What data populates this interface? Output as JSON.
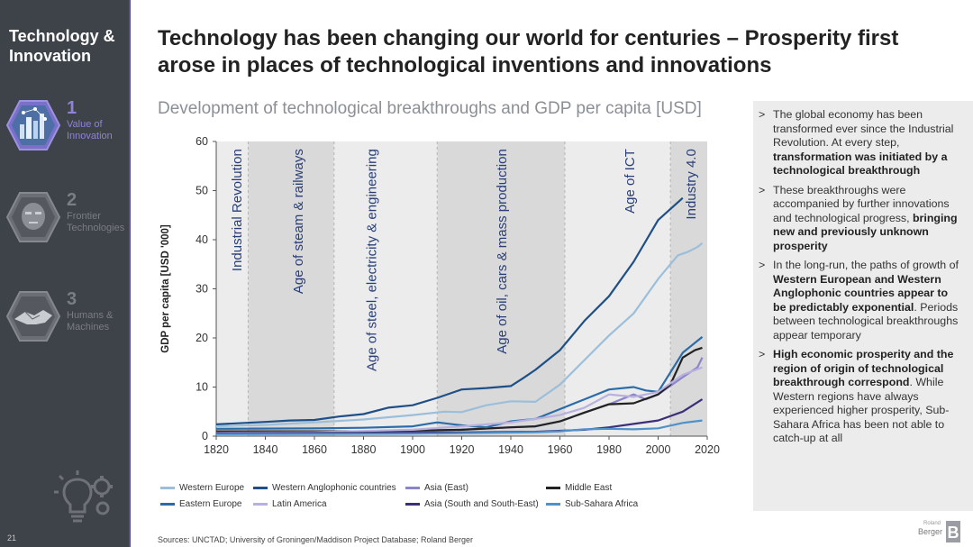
{
  "sidebar": {
    "title": "Technology & Innovation",
    "items": [
      {
        "num": "1",
        "label": "Value of Innovation",
        "icon": "city-network-icon"
      },
      {
        "num": "2",
        "label": "Frontier Technologies",
        "icon": "robot-face-icon"
      },
      {
        "num": "3",
        "label": "Humans & Machines",
        "icon": "handshake-icon"
      }
    ],
    "page_number": "21"
  },
  "header": {
    "title": "Technology has been changing our world for centuries – Prosperity first arose in places of technological inventions and innovations"
  },
  "chart_title": "Development of technological breakthroughs and GDP per capita [USD]",
  "chart_data": {
    "type": "line",
    "title": "Development of technological breakthroughs and GDP per capita [USD]",
    "xlabel": "",
    "ylabel": "GDP per capita [USD '000]",
    "xlim": [
      1820,
      2020
    ],
    "ylim": [
      0,
      60
    ],
    "x_ticks": [
      "1820",
      "1840",
      "1860",
      "1880",
      "1900",
      "1920",
      "1940",
      "1960",
      "1980",
      "2000",
      "2020"
    ],
    "y_ticks": [
      "0",
      "10",
      "20",
      "30",
      "40",
      "50",
      "60"
    ],
    "grid": false,
    "legend_position": "bottom",
    "eras": [
      {
        "label": "Industrial Revolution",
        "start": 1820,
        "end": 1833,
        "shade": "#ececec"
      },
      {
        "label": "Age of steam & railways",
        "start": 1833,
        "end": 1868,
        "shade": "#d9d9d9"
      },
      {
        "label": "Age of steel, electricity & engineering",
        "start": 1868,
        "end": 1910,
        "shade": "#ececec"
      },
      {
        "label": "Age of oil, cars & mass production",
        "start": 1910,
        "end": 1962,
        "shade": "#d9d9d9"
      },
      {
        "label": "Age of ICT",
        "start": 1962,
        "end": 2005,
        "shade": "#ececec"
      },
      {
        "label": "Industry 4.0",
        "start": 2005,
        "end": 2020,
        "shade": "#d9d9d9"
      }
    ],
    "series": [
      {
        "name": "Western Europe",
        "color": "#9bbfdb",
        "points": [
          [
            1820,
            2.0
          ],
          [
            1840,
            2.3
          ],
          [
            1860,
            2.8
          ],
          [
            1880,
            3.4
          ],
          [
            1900,
            4.3
          ],
          [
            1913,
            5.0
          ],
          [
            1920,
            4.9
          ],
          [
            1930,
            6.3
          ],
          [
            1940,
            7.1
          ],
          [
            1950,
            7.0
          ],
          [
            1960,
            10.5
          ],
          [
            1970,
            15.5
          ],
          [
            1980,
            20.5
          ],
          [
            1990,
            25.0
          ],
          [
            2000,
            32.0
          ],
          [
            2008,
            36.8
          ],
          [
            2012,
            37.5
          ],
          [
            2016,
            38.5
          ],
          [
            2018,
            39.3
          ]
        ]
      },
      {
        "name": "Western Anglophonic countries",
        "color": "#1e4f86",
        "points": [
          [
            1820,
            2.4
          ],
          [
            1840,
            2.9
          ],
          [
            1850,
            3.2
          ],
          [
            1860,
            3.3
          ],
          [
            1870,
            4.0
          ],
          [
            1880,
            4.5
          ],
          [
            1890,
            5.8
          ],
          [
            1900,
            6.3
          ],
          [
            1910,
            7.8
          ],
          [
            1920,
            9.5
          ],
          [
            1930,
            9.8
          ],
          [
            1940,
            10.2
          ],
          [
            1945,
            11.8
          ],
          [
            1950,
            13.5
          ],
          [
            1960,
            17.5
          ],
          [
            1970,
            23.5
          ],
          [
            1980,
            28.5
          ],
          [
            1990,
            35.5
          ],
          [
            2000,
            44.0
          ],
          [
            2010,
            48.5
          ]
        ]
      },
      {
        "name": "Asia (East)",
        "color": "#8b86c8",
        "points": [
          [
            1820,
            0.9
          ],
          [
            1860,
            0.9
          ],
          [
            1900,
            1.0
          ],
          [
            1920,
            1.3
          ],
          [
            1940,
            1.8
          ],
          [
            1950,
            2.0
          ],
          [
            1960,
            3.0
          ],
          [
            1970,
            4.8
          ],
          [
            1980,
            6.5
          ],
          [
            1990,
            8.5
          ],
          [
            1995,
            7.5
          ],
          [
            2000,
            8.5
          ],
          [
            2010,
            12.0
          ],
          [
            2016,
            14.0
          ],
          [
            2018,
            16.0
          ]
        ]
      },
      {
        "name": "Middle East",
        "color": "#222222",
        "points": [
          [
            1820,
            1.0
          ],
          [
            1880,
            1.0
          ],
          [
            1920,
            1.3
          ],
          [
            1940,
            1.8
          ],
          [
            1950,
            2.0
          ],
          [
            1960,
            3.0
          ],
          [
            1970,
            4.8
          ],
          [
            1980,
            6.5
          ],
          [
            1990,
            6.7
          ],
          [
            2000,
            8.5
          ],
          [
            2005,
            10.5
          ],
          [
            2010,
            16.0
          ],
          [
            2015,
            17.5
          ],
          [
            2018,
            18.0
          ]
        ]
      },
      {
        "name": "Eastern Europe",
        "color": "#2b6ca8",
        "points": [
          [
            1820,
            1.5
          ],
          [
            1860,
            1.6
          ],
          [
            1880,
            1.7
          ],
          [
            1900,
            2.0
          ],
          [
            1910,
            2.8
          ],
          [
            1920,
            2.2
          ],
          [
            1930,
            1.8
          ],
          [
            1940,
            3.0
          ],
          [
            1950,
            3.5
          ],
          [
            1960,
            5.5
          ],
          [
            1970,
            7.5
          ],
          [
            1980,
            9.5
          ],
          [
            1990,
            10.0
          ],
          [
            1995,
            9.3
          ],
          [
            2000,
            9.0
          ],
          [
            2010,
            17.0
          ],
          [
            2018,
            20.2
          ]
        ]
      },
      {
        "name": "Latin America",
        "color": "#b8b0dd",
        "points": [
          [
            1820,
            0.7
          ],
          [
            1860,
            0.8
          ],
          [
            1900,
            1.3
          ],
          [
            1920,
            2.0
          ],
          [
            1940,
            2.8
          ],
          [
            1950,
            3.5
          ],
          [
            1960,
            4.3
          ],
          [
            1970,
            5.8
          ],
          [
            1980,
            8.5
          ],
          [
            1990,
            8.0
          ],
          [
            2000,
            9.0
          ],
          [
            2010,
            12.5
          ],
          [
            2018,
            14.0
          ]
        ]
      },
      {
        "name": "Asia (South and South-East)",
        "color": "#3a2f78",
        "points": [
          [
            1820,
            0.6
          ],
          [
            1900,
            0.7
          ],
          [
            1950,
            0.9
          ],
          [
            1970,
            1.3
          ],
          [
            1980,
            1.8
          ],
          [
            1990,
            2.5
          ],
          [
            2000,
            3.2
          ],
          [
            2010,
            5.0
          ],
          [
            2018,
            7.5
          ]
        ]
      },
      {
        "name": "Sub-Sahara Africa",
        "color": "#4f92c9",
        "points": [
          [
            1820,
            0.4
          ],
          [
            1900,
            0.5
          ],
          [
            1920,
            0.6
          ],
          [
            1950,
            0.8
          ],
          [
            1960,
            1.0
          ],
          [
            1970,
            1.4
          ],
          [
            1980,
            1.5
          ],
          [
            1990,
            1.4
          ],
          [
            2000,
            1.6
          ],
          [
            2010,
            2.7
          ],
          [
            2018,
            3.2
          ]
        ]
      }
    ]
  },
  "legend": [
    "Western Europe",
    "Western Anglophonic countries",
    "Asia (East)",
    "Middle East",
    "Eastern Europe",
    "Latin America",
    "Asia (South and South-East)",
    "Sub-Sahara Africa"
  ],
  "panel": {
    "marker": ">",
    "bullets": [
      [
        {
          "t": "The global economy has been transformed ever since the Industrial Revolution. At every step, "
        },
        {
          "t": "transformation was initiated by a technological breakthrough",
          "b": true
        }
      ],
      [
        {
          "t": "These breakthroughs were accompanied by further innovations and technological progress, "
        },
        {
          "t": "bringing new and previously unknown prosperity",
          "b": true
        }
      ],
      [
        {
          "t": "In the long-run, the paths of growth of "
        },
        {
          "t": "Western European and Western Anglophonic countries appear to be predictably exponential",
          "b": true
        },
        {
          "t": ". Periods between technological breakthroughs appear temporary"
        }
      ],
      [
        {
          "t": "High economic prosperity and the region of origin of technological breakthrough correspond",
          "b": true
        },
        {
          "t": ". While Western regions have always experienced higher prosperity, Sub-Sahara Africa has been not able to catch-up at all"
        }
      ]
    ]
  },
  "sources": "Sources: UNCTAD; University of Groningen/Maddison Project Database; Roland Berger",
  "logo": {
    "small": "Roland",
    "name": "Berger",
    "mark": "B"
  }
}
